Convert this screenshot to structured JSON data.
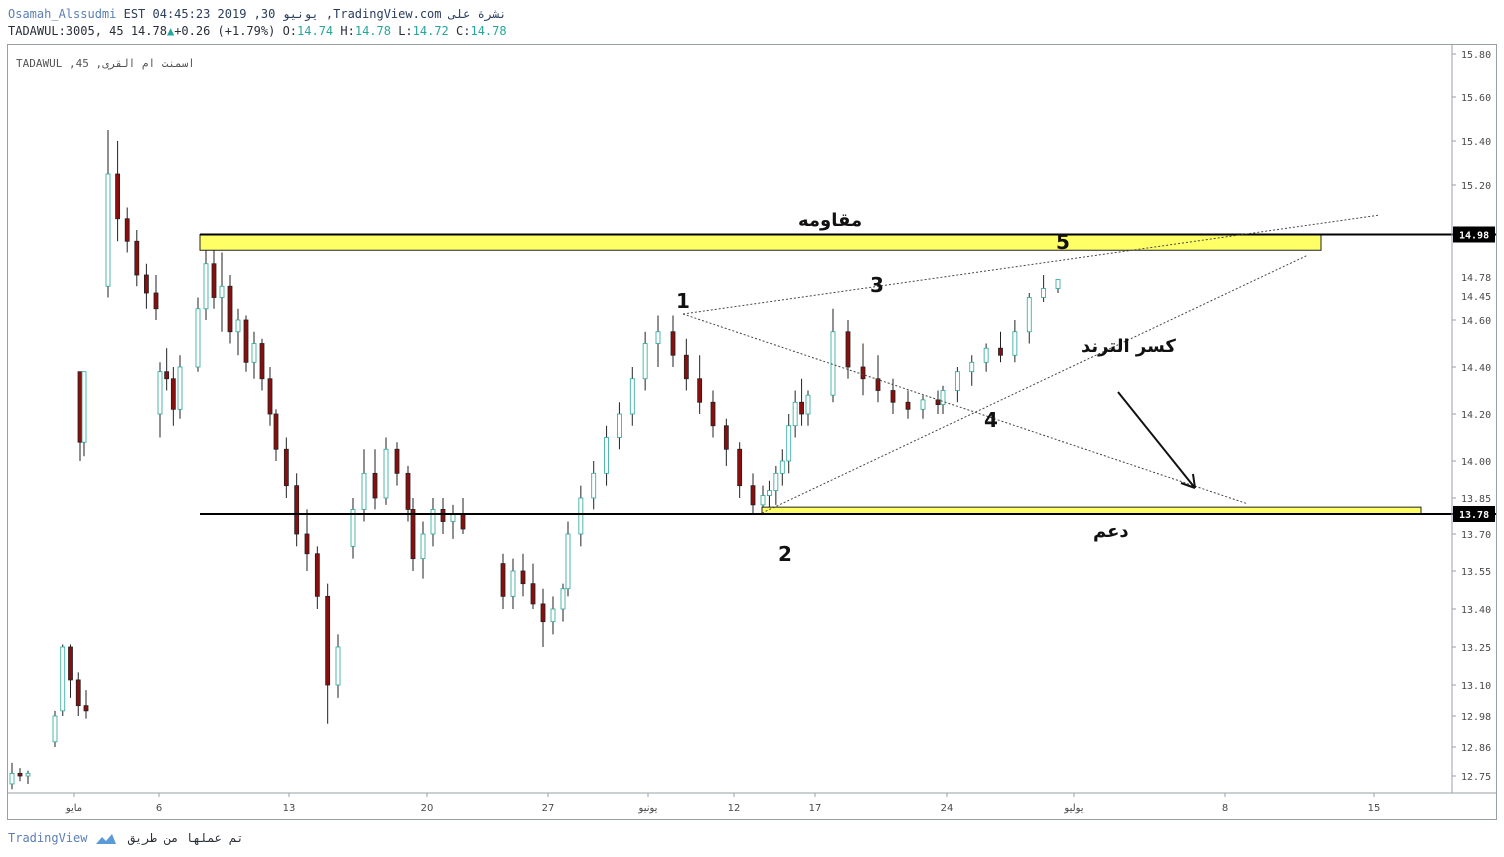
{
  "header": {
    "author": "Osamah_Alssudmi",
    "published": "EST 04:45:23 2019 ,30 يونيو ,TradingView.com نشرة على",
    "symbol": "TADAWUL:3005, 45",
    "last": "14.78",
    "change": "+0.26 (+1.79%)",
    "o_label": "O:",
    "o_value": "14.74",
    "h_label": "H:",
    "h_value": "14.78",
    "l_label": "L:",
    "l_value": "14.72",
    "c_label": "C:",
    "c_value": "14.78"
  },
  "watermark": "TADAWUL ,45 ,اسمنت ام القرى",
  "footer": {
    "brand": "TradingView",
    "made_by": "تم عملها من طريق"
  },
  "colors": {
    "up": "#26a69a",
    "down": "#8b0e0e",
    "zone": "#ffff66",
    "axis_text": "#4a4a4a"
  },
  "chart_data": {
    "type": "candlestick",
    "symbol": "TADAWUL:3005",
    "interval": "45",
    "y_ticks": [
      15.8,
      15.6,
      15.4,
      15.2,
      14.6,
      14.4,
      14.2,
      14.0,
      13.85,
      13.7,
      13.55,
      13.4,
      13.25,
      13.1,
      12.98,
      12.86,
      12.75
    ],
    "y_tick_labels": [
      "15.80",
      "15.60",
      "15.40",
      "15.20",
      "14.60",
      "14.40",
      "14.20",
      "14.00",
      "13.85",
      "13.70",
      "13.55",
      "13.40",
      "13.25",
      "13.10",
      "12.98",
      "12.86",
      "12.75"
    ],
    "extra_y_labels": [
      "14.78",
      "14.45"
    ],
    "price_tags": [
      {
        "label": "14.98",
        "value": 14.98
      },
      {
        "label": "13.78",
        "value": 13.78
      }
    ],
    "x_ticks": [
      "مايو",
      "6",
      "13",
      "20",
      "27",
      "يونيو",
      "12",
      "17",
      "24",
      "يوليو",
      "8",
      "15"
    ],
    "zones": [
      {
        "name": "resistance",
        "label": "مقاومه",
        "top": 14.98,
        "bottom": 14.91
      },
      {
        "name": "support",
        "label": "دعم",
        "top": 13.81,
        "bottom": 13.78
      }
    ],
    "annotations": [
      "1",
      "2",
      "3",
      "4",
      "5",
      "كسر الترند"
    ],
    "candles_approx": [
      [
        12.72,
        12.8,
        12.7,
        12.76
      ],
      [
        12.76,
        12.78,
        12.73,
        12.75
      ],
      [
        12.75,
        12.77,
        12.72,
        12.76
      ],
      [
        14.38,
        14.38,
        14.0,
        14.08
      ],
      [
        14.08,
        14.38,
        14.02,
        14.38
      ],
      [
        12.88,
        13.0,
        12.86,
        12.98
      ],
      [
        13.0,
        13.26,
        12.98,
        13.25
      ],
      [
        13.25,
        13.26,
        13.05,
        13.12
      ],
      [
        13.12,
        13.15,
        12.98,
        13.02
      ],
      [
        13.02,
        13.08,
        12.97,
        13.0
      ],
      [
        14.75,
        15.45,
        14.7,
        15.25
      ],
      [
        15.25,
        15.4,
        14.95,
        15.05
      ],
      [
        15.05,
        15.1,
        14.9,
        14.95
      ],
      [
        14.95,
        15.0,
        14.75,
        14.8
      ],
      [
        14.8,
        14.85,
        14.65,
        14.72
      ],
      [
        14.72,
        14.8,
        14.6,
        14.65
      ],
      [
        14.2,
        14.42,
        14.1,
        14.38
      ],
      [
        14.38,
        14.48,
        14.3,
        14.35
      ],
      [
        14.35,
        14.4,
        14.15,
        14.22
      ],
      [
        14.22,
        14.45,
        14.18,
        14.4
      ],
      [
        14.4,
        14.7,
        14.38,
        14.65
      ],
      [
        14.65,
        14.95,
        14.6,
        14.85
      ],
      [
        14.85,
        14.92,
        14.65,
        14.7
      ],
      [
        14.7,
        14.9,
        14.55,
        14.75
      ],
      [
        14.75,
        14.8,
        14.5,
        14.55
      ],
      [
        14.55,
        14.65,
        14.45,
        14.6
      ],
      [
        14.6,
        14.62,
        14.38,
        14.42
      ],
      [
        14.42,
        14.55,
        14.35,
        14.5
      ],
      [
        14.5,
        14.52,
        14.3,
        14.35
      ],
      [
        14.35,
        14.4,
        14.15,
        14.2
      ],
      [
        14.2,
        14.22,
        14.0,
        14.05
      ],
      [
        14.05,
        14.1,
        13.85,
        13.9
      ],
      [
        13.9,
        13.95,
        13.65,
        13.7
      ],
      [
        13.7,
        13.8,
        13.55,
        13.62
      ],
      [
        13.62,
        13.65,
        13.4,
        13.45
      ],
      [
        13.45,
        13.5,
        12.95,
        13.1
      ],
      [
        13.1,
        13.3,
        13.05,
        13.25
      ],
      [
        13.65,
        13.85,
        13.6,
        13.8
      ],
      [
        13.8,
        14.05,
        13.75,
        13.95
      ],
      [
        13.95,
        14.05,
        13.8,
        13.85
      ],
      [
        13.85,
        14.1,
        13.82,
        14.05
      ],
      [
        14.05,
        14.08,
        13.9,
        13.95
      ],
      [
        13.95,
        13.98,
        13.75,
        13.8
      ],
      [
        13.8,
        13.85,
        13.55,
        13.6
      ],
      [
        13.6,
        13.75,
        13.52,
        13.7
      ],
      [
        13.7,
        13.85,
        13.65,
        13.8
      ],
      [
        13.8,
        13.85,
        13.7,
        13.75
      ],
      [
        13.75,
        13.82,
        13.68,
        13.78
      ],
      [
        13.78,
        13.85,
        13.7,
        13.72
      ],
      [
        13.58,
        13.62,
        13.4,
        13.45
      ],
      [
        13.45,
        13.6,
        13.4,
        13.55
      ],
      [
        13.55,
        13.62,
        13.45,
        13.5
      ],
      [
        13.5,
        13.58,
        13.4,
        13.42
      ],
      [
        13.42,
        13.48,
        13.25,
        13.35
      ],
      [
        13.35,
        13.45,
        13.3,
        13.4
      ],
      [
        13.4,
        13.5,
        13.35,
        13.48
      ],
      [
        13.48,
        13.75,
        13.45,
        13.7
      ],
      [
        13.7,
        13.9,
        13.65,
        13.85
      ],
      [
        13.85,
        14.0,
        13.8,
        13.95
      ],
      [
        13.95,
        14.15,
        13.9,
        14.1
      ],
      [
        14.1,
        14.25,
        14.05,
        14.2
      ],
      [
        14.2,
        14.4,
        14.15,
        14.35
      ],
      [
        14.35,
        14.55,
        14.3,
        14.5
      ],
      [
        14.5,
        14.62,
        14.4,
        14.55
      ],
      [
        14.55,
        14.62,
        14.4,
        14.45
      ],
      [
        14.45,
        14.52,
        14.3,
        14.35
      ],
      [
        14.35,
        14.45,
        14.2,
        14.25
      ],
      [
        14.25,
        14.3,
        14.1,
        14.15
      ],
      [
        14.15,
        14.18,
        13.98,
        14.05
      ],
      [
        14.05,
        14.08,
        13.85,
        13.9
      ],
      [
        13.9,
        13.95,
        13.78,
        13.82
      ],
      [
        13.82,
        13.9,
        13.78,
        13.86
      ],
      [
        13.86,
        13.92,
        13.8,
        13.88
      ],
      [
        13.88,
        13.98,
        13.82,
        13.95
      ],
      [
        13.95,
        14.05,
        13.9,
        14.0
      ],
      [
        14.0,
        14.2,
        13.95,
        14.15
      ],
      [
        14.15,
        14.3,
        14.1,
        14.25
      ],
      [
        14.25,
        14.35,
        14.15,
        14.2
      ],
      [
        14.2,
        14.3,
        14.15,
        14.28
      ],
      [
        14.28,
        14.65,
        14.25,
        14.55
      ],
      [
        14.55,
        14.6,
        14.35,
        14.4
      ],
      [
        14.4,
        14.5,
        14.28,
        14.35
      ],
      [
        14.35,
        14.45,
        14.25,
        14.3
      ],
      [
        14.3,
        14.35,
        14.2,
        14.25
      ],
      [
        14.25,
        14.3,
        14.18,
        14.22
      ],
      [
        14.22,
        14.28,
        14.18,
        14.26
      ],
      [
        14.26,
        14.3,
        14.2,
        14.24
      ],
      [
        14.24,
        14.32,
        14.2,
        14.3
      ],
      [
        14.3,
        14.4,
        14.25,
        14.38
      ],
      [
        14.38,
        14.45,
        14.32,
        14.42
      ],
      [
        14.42,
        14.5,
        14.38,
        14.48
      ],
      [
        14.48,
        14.55,
        14.42,
        14.45
      ],
      [
        14.45,
        14.6,
        14.42,
        14.55
      ],
      [
        14.55,
        14.72,
        14.5,
        14.7
      ],
      [
        14.7,
        14.8,
        14.68,
        14.74
      ],
      [
        14.74,
        14.78,
        14.72,
        14.78
      ]
    ]
  }
}
